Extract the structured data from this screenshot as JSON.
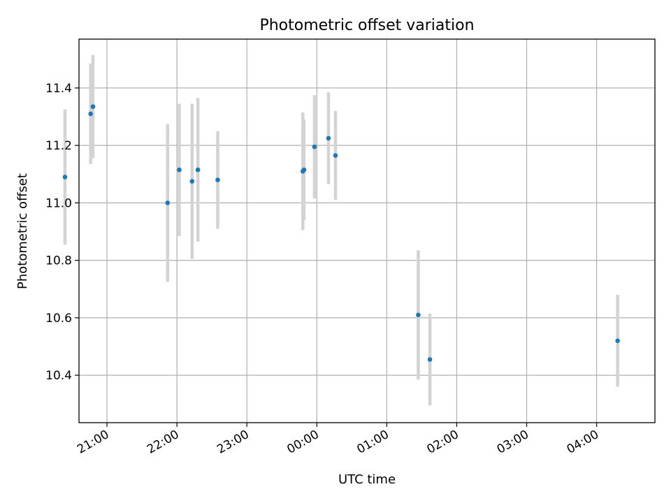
{
  "chart_data": {
    "type": "scatter",
    "title": "Photometric offset variation",
    "xlabel": "UTC time",
    "ylabel": "Photometric offset",
    "grid": true,
    "x_ticks": [
      "21:00",
      "22:00",
      "23:00",
      "00:00",
      "01:00",
      "02:00",
      "03:00",
      "04:00"
    ],
    "y_ticks": [
      "10.4",
      "10.6",
      "10.8",
      "11.0",
      "11.2",
      "11.4"
    ],
    "xlim": [
      "20:36",
      "04:50"
    ],
    "ylim": [
      10.235,
      11.57
    ],
    "colors": {
      "marker": "#1f77b4",
      "errorbar": "#d3d3d3"
    },
    "points": [
      {
        "t": "20:24",
        "y": 11.09,
        "err": 0.235
      },
      {
        "t": "20:46",
        "y": 11.31,
        "err": 0.175
      },
      {
        "t": "20:48",
        "y": 11.335,
        "err": 0.18
      },
      {
        "t": "21:52",
        "y": 11.0,
        "err": 0.275
      },
      {
        "t": "22:02",
        "y": 11.115,
        "err": 0.23
      },
      {
        "t": "22:13",
        "y": 11.075,
        "err": 0.27
      },
      {
        "t": "22:18",
        "y": 11.115,
        "err": 0.25
      },
      {
        "t": "22:35",
        "y": 11.08,
        "err": 0.17
      },
      {
        "t": "23:48",
        "y": 11.11,
        "err": 0.205
      },
      {
        "t": "23:49",
        "y": 11.115,
        "err": 0.175
      },
      {
        "t": "23:58",
        "y": 11.195,
        "err": 0.18
      },
      {
        "t": "00:10",
        "y": 11.225,
        "err": 0.16
      },
      {
        "t": "00:16",
        "y": 11.165,
        "err": 0.155
      },
      {
        "t": "01:27",
        "y": 10.61,
        "err": 0.225
      },
      {
        "t": "01:37",
        "y": 10.455,
        "err": 0.16
      },
      {
        "t": "04:18",
        "y": 10.52,
        "err": 0.16
      }
    ]
  }
}
